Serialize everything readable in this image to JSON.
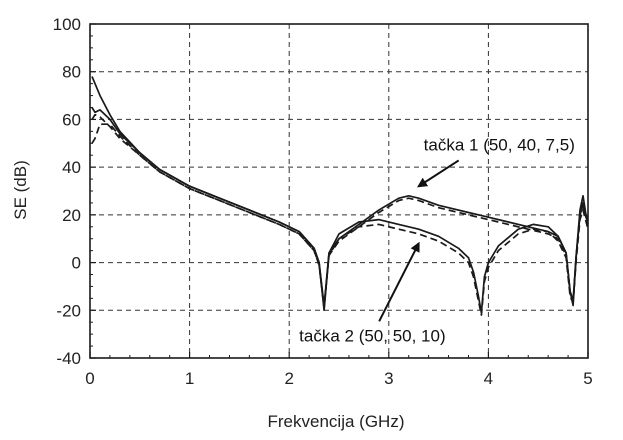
{
  "chart_data": {
    "type": "line",
    "xlabel": "Frekvencija (GHz)",
    "ylabel": "SE (dB)",
    "xlim": [
      0,
      5
    ],
    "ylim": [
      -40,
      100
    ],
    "x_ticks": [
      "0",
      "1",
      "2",
      "3",
      "4",
      "5"
    ],
    "y_ticks": [
      "-40",
      "-20",
      "0",
      "20",
      "40",
      "60",
      "80",
      "100"
    ],
    "grid": true,
    "grid_style": "dashed",
    "line_color": "#1a1a1a",
    "series": [
      {
        "line_style": "solid",
        "x": [
          0.02,
          0.05,
          0.1,
          0.2,
          0.3,
          0.5,
          0.7,
          1.0,
          1.3,
          1.6,
          1.9,
          2.1,
          2.25,
          2.3,
          2.35,
          2.4,
          2.5,
          2.7,
          2.9,
          3.1,
          3.2,
          3.3,
          3.5,
          3.8,
          4.0,
          4.2,
          4.4,
          4.6,
          4.7,
          4.78,
          4.82,
          4.85,
          4.88,
          4.92,
          4.95,
          4.98,
          5.0
        ],
        "y": [
          78,
          75,
          70,
          62,
          55,
          46,
          39,
          32,
          27,
          22,
          17,
          13,
          6,
          0,
          -18,
          4,
          10,
          16,
          22,
          27,
          28,
          27,
          24,
          21,
          19,
          17,
          15,
          13,
          11,
          4,
          -12,
          -16,
          2,
          22,
          28,
          20,
          18
        ]
      },
      {
        "line_style": "solid",
        "x": [
          0.02,
          0.05,
          0.1,
          0.2,
          0.3,
          0.5,
          0.7,
          1.0,
          1.3,
          1.6,
          1.9,
          2.1,
          2.25,
          2.3,
          2.35,
          2.4,
          2.5,
          2.7,
          2.9,
          3.1,
          3.3,
          3.5,
          3.7,
          3.8,
          3.85,
          3.9,
          3.93,
          3.96,
          4.0,
          4.1,
          4.3,
          4.45,
          4.6,
          4.7,
          4.78,
          4.82,
          4.85,
          4.88,
          4.92,
          4.95,
          5.0
        ],
        "y": [
          65,
          63,
          64,
          60,
          54,
          46,
          39,
          32,
          27,
          22,
          17,
          13,
          6,
          0,
          -20,
          4,
          12,
          17,
          18,
          16,
          14,
          11,
          6,
          2,
          -4,
          -14,
          -21,
          -6,
          0,
          7,
          14,
          16,
          15,
          11,
          4,
          -12,
          -18,
          2,
          20,
          24,
          16
        ]
      },
      {
        "line_style": "dashed",
        "x": [
          0.02,
          0.05,
          0.1,
          0.2,
          0.3,
          0.5,
          0.7,
          1.0,
          1.3,
          1.6,
          1.9,
          2.1,
          2.25,
          2.3,
          2.35,
          2.4,
          2.5,
          2.7,
          2.9,
          3.1,
          3.2,
          3.3,
          3.5,
          3.8,
          4.0,
          4.2,
          4.4,
          4.6,
          4.7,
          4.78,
          4.82,
          4.85,
          4.88,
          4.92,
          4.95,
          4.98,
          5.0
        ],
        "y": [
          50,
          52,
          58,
          58,
          53,
          45,
          38,
          31,
          26,
          21,
          16,
          12,
          5,
          -1,
          -19,
          3,
          9,
          15,
          21,
          26,
          27,
          26,
          23,
          20,
          18,
          16,
          14,
          12,
          10,
          3,
          -13,
          -17,
          1,
          21,
          26,
          19,
          17
        ]
      },
      {
        "line_style": "dashed",
        "x": [
          0.02,
          0.05,
          0.1,
          0.2,
          0.3,
          0.5,
          0.7,
          1.0,
          1.3,
          1.6,
          1.9,
          2.1,
          2.25,
          2.3,
          2.35,
          2.4,
          2.5,
          2.7,
          2.9,
          3.1,
          3.3,
          3.5,
          3.7,
          3.8,
          3.85,
          3.9,
          3.93,
          3.96,
          4.0,
          4.1,
          4.3,
          4.45,
          4.6,
          4.7,
          4.78,
          4.82,
          4.85,
          4.88,
          4.92,
          4.95,
          5.0
        ],
        "y": [
          60,
          62,
          61,
          57,
          52,
          45,
          38,
          31,
          26,
          21,
          16,
          12,
          5,
          -1,
          -19,
          3,
          10,
          15,
          16,
          14,
          12,
          9,
          4,
          0,
          -6,
          -16,
          -22,
          -8,
          -2,
          5,
          12,
          14,
          13,
          9,
          2,
          -14,
          -17,
          0,
          18,
          22,
          14
        ]
      }
    ],
    "annotations": [
      {
        "text": "tačka 1 (50, 40, 7,5)",
        "x": 3.35,
        "y": 47,
        "arrow_to": [
          3.3,
          32
        ]
      },
      {
        "text": "tačka 2 (50, 50, 10)",
        "x": 2.1,
        "y": -33,
        "arrow_to": [
          3.3,
          8
        ]
      }
    ]
  }
}
